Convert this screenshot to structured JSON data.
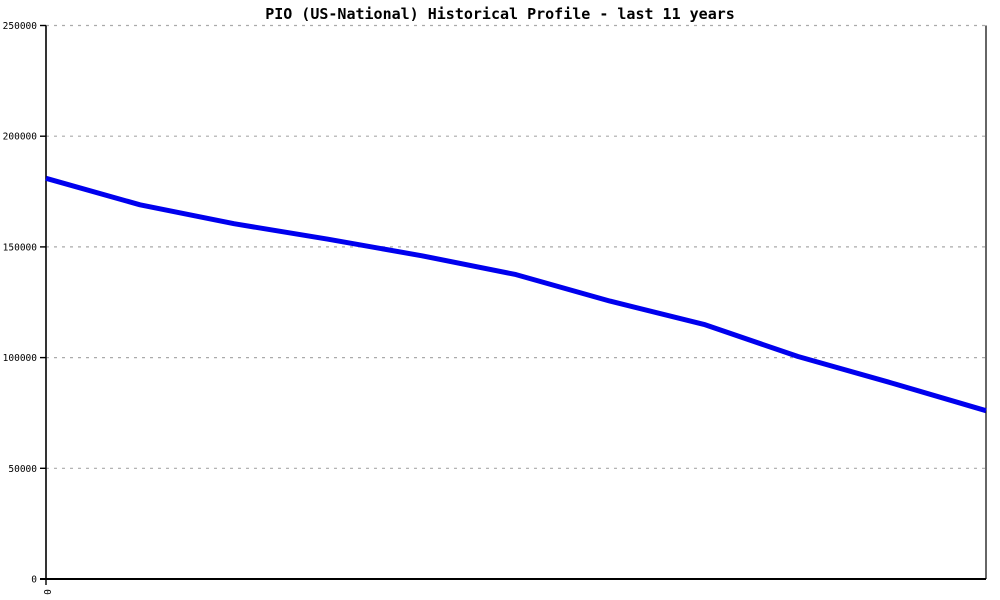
{
  "title": "PIO (US-National) Historical Profile - last 11 years",
  "chart_data": {
    "type": "line",
    "title": "PIO (US-National) Historical Profile - last 11 years",
    "xlabel": "",
    "ylabel": "",
    "x": [
      0,
      1,
      2,
      3,
      4,
      5,
      6,
      7,
      8,
      9,
      10
    ],
    "values": [
      181000,
      169000,
      160500,
      153500,
      146000,
      137500,
      125500,
      115000,
      100500,
      88500,
      76000
    ],
    "ylim": [
      0,
      250000
    ],
    "y_ticks": [
      0,
      50000,
      100000,
      150000,
      200000,
      250000
    ],
    "y_tick_labels": [
      "0",
      "50000",
      "100000",
      "150000",
      "200000",
      "250000"
    ],
    "x_tick_labels_visible": [
      "0"
    ],
    "grid": "horizontal-dashed",
    "legend": "none",
    "line_color": "#0000ee",
    "grid_color": "#aaaaaa",
    "axis_color": "#000000"
  }
}
